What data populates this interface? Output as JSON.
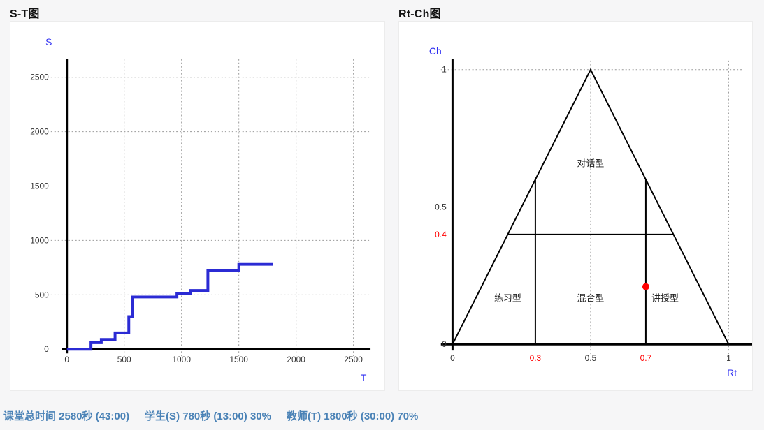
{
  "titles": {
    "st": "S-T图",
    "rtch": "Rt-Ch图"
  },
  "status_bar": {
    "total_time": "课堂总时间 2580秒 (43:00)",
    "student": "学生(S) 780秒 (13:00) 30%",
    "teacher": "教师(T) 1800秒 (30:00) 70%"
  },
  "colors": {
    "axis_label_blue": "#2e2ef2",
    "step_line": "#2b2bd4",
    "red": "#ff0000",
    "tick": "#333333",
    "grid": "#999999",
    "axis": "#000000",
    "status_text": "#4a82b6"
  },
  "chart_data": [
    {
      "type": "line",
      "subtype": "step-after",
      "title": "S-T图",
      "xlabel": "T",
      "ylabel": "S",
      "xlim": [
        0,
        2700
      ],
      "ylim": [
        0,
        2700
      ],
      "xticks": [
        0,
        500,
        1000,
        1500,
        2000,
        2500
      ],
      "yticks": [
        0,
        500,
        1000,
        1500,
        2000,
        2500
      ],
      "grid": "dotted",
      "legend": "none",
      "points": [
        [
          0,
          0
        ],
        [
          210,
          60
        ],
        [
          300,
          90
        ],
        [
          420,
          150
        ],
        [
          540,
          300
        ],
        [
          570,
          480
        ],
        [
          960,
          510
        ],
        [
          1080,
          540
        ],
        [
          1230,
          720
        ],
        [
          1500,
          780
        ],
        [
          1800,
          780
        ]
      ],
      "end_point": [
        1800,
        780
      ]
    },
    {
      "type": "scatter",
      "title": "Rt-Ch图",
      "xlabel": "Rt",
      "ylabel": "Ch",
      "xlim": [
        0,
        1
      ],
      "ylim": [
        0,
        1
      ],
      "xticks": [
        {
          "v": 0
        },
        {
          "v": 0.3,
          "red": true
        },
        {
          "v": 0.5
        },
        {
          "v": 0.7,
          "red": true
        },
        {
          "v": 1
        }
      ],
      "yticks": [
        {
          "v": 0
        },
        {
          "v": 0.4,
          "red": true
        },
        {
          "v": 0.5
        },
        {
          "v": 1
        }
      ],
      "grid_x": [
        0.5,
        1
      ],
      "grid_y": [
        0.5,
        1
      ],
      "triangle": [
        [
          0,
          0
        ],
        [
          0.5,
          1
        ],
        [
          1,
          0
        ]
      ],
      "boundary_segments": [
        [
          [
            0.3,
            0
          ],
          [
            0.3,
            0.6
          ]
        ],
        [
          [
            0.7,
            0
          ],
          [
            0.7,
            0.6
          ]
        ],
        [
          [
            0.2,
            0.4
          ],
          [
            0.8,
            0.4
          ]
        ]
      ],
      "region_labels": [
        {
          "text": "对话型",
          "x": 0.5,
          "y": 0.66
        },
        {
          "text": "练习型",
          "x": 0.2,
          "y": 0.17
        },
        {
          "text": "混合型",
          "x": 0.5,
          "y": 0.17
        },
        {
          "text": "讲授型",
          "x": 0.77,
          "y": 0.17
        }
      ],
      "point": {
        "rt": 0.7,
        "ch": 0.21
      }
    }
  ]
}
